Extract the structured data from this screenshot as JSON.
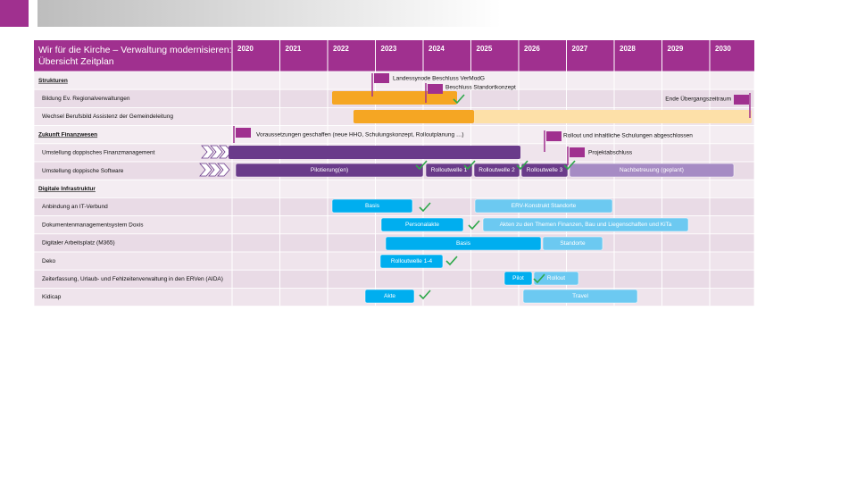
{
  "header": {
    "title": [
      "Wir für die Kirche – Verwaltung modernisieren:",
      "Übersicht Zeitplan"
    ],
    "years": [
      "2020",
      "2021",
      "2022",
      "2023",
      "2024",
      "2025",
      "2026",
      "2027",
      "2028",
      "2029",
      "2030"
    ]
  },
  "rows": [
    "Strukturen",
    "Bildung Ev. Regionalverwaltungen",
    "Wechsel Berufsbild Assistenz der Gemeindeleitung",
    "Zukunft Finanzwesen",
    "Umstellung doppisches Finanzmanagement",
    "Umstellung doppische Software",
    "Digitale Infrastruktur",
    "Anbindung an IT-Verbund",
    "Dokumentenmanagementsystem Doxis",
    "Digitaler Arbeitsplatz (M365)",
    "Deko",
    "Zeiterfassung, Urlaub- und Fehlzeitenverwaltung in den ERVen (AIDA)",
    "Kidicap"
  ],
  "annotations": [
    "Landessynode Beschluss VerModG",
    "Beschluss Standortkonzept",
    "Ende Übergangszeitraum",
    "Voraussetzungen geschaffen (neue HHO, Schulungskonzept, Rolloutplanung …)",
    "Rollout und inhaltliche Schulungen abgeschlossen",
    "Projektabschluss"
  ],
  "bars": [
    "Pilotierung(en)",
    "Rolloutwelle 1",
    "Rolloutwelle 2",
    "Rolloutwelle 3",
    "Nachbetreuung (geplant)",
    "Basis",
    "ERV-Konstrukt Standorte",
    "Personalakte",
    "Akten zu den Themen Finanzen, Bau und Liegenschaften und KiTa",
    "Basis",
    "Standorte",
    "Rolloutwelle 1-4",
    "Pilot",
    "Rollout",
    "Akte",
    "Travel"
  ]
}
